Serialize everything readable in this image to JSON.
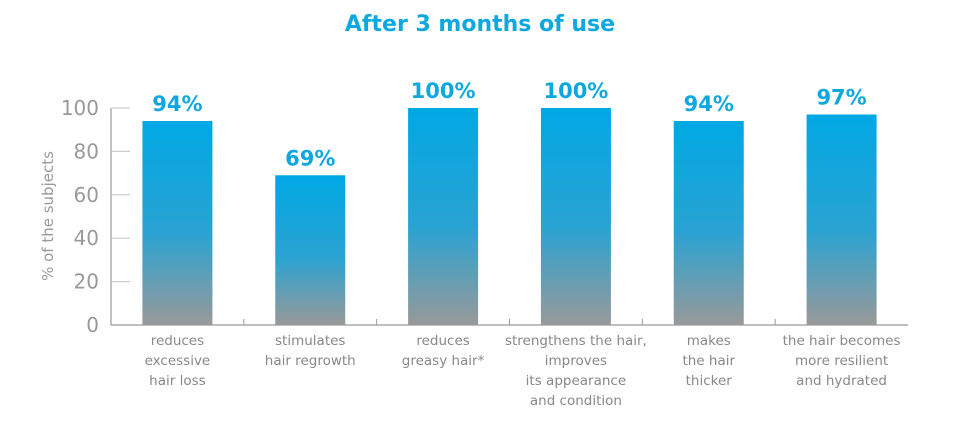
{
  "chart_data": {
    "type": "bar",
    "title": "After 3 months of use",
    "ylabel": "% of the subjects",
    "xlabel": "",
    "ylim": [
      0,
      100
    ],
    "yticks": [
      0,
      20,
      40,
      60,
      80,
      100
    ],
    "grid": false,
    "categories": [
      [
        "reduces",
        "excessive",
        "hair loss"
      ],
      [
        "stimulates",
        "hair regrowth"
      ],
      [
        "reduces",
        "greasy hair*"
      ],
      [
        "strengthens the hair,",
        "improves",
        "its appearance",
        "and condition"
      ],
      [
        "makes",
        "the hair",
        "thicker"
      ],
      [
        "the hair becomes",
        "more resilient",
        "and hydrated"
      ]
    ],
    "values": [
      94,
      69,
      100,
      100,
      94,
      97
    ],
    "data_labels": [
      "94%",
      "69%",
      "100%",
      "100%",
      "94%",
      "97%"
    ],
    "colors": {
      "bar_top": "#00a8e4",
      "bar_bottom": "#999999",
      "label": "#0ea8e0",
      "axis": "#999999"
    }
  }
}
